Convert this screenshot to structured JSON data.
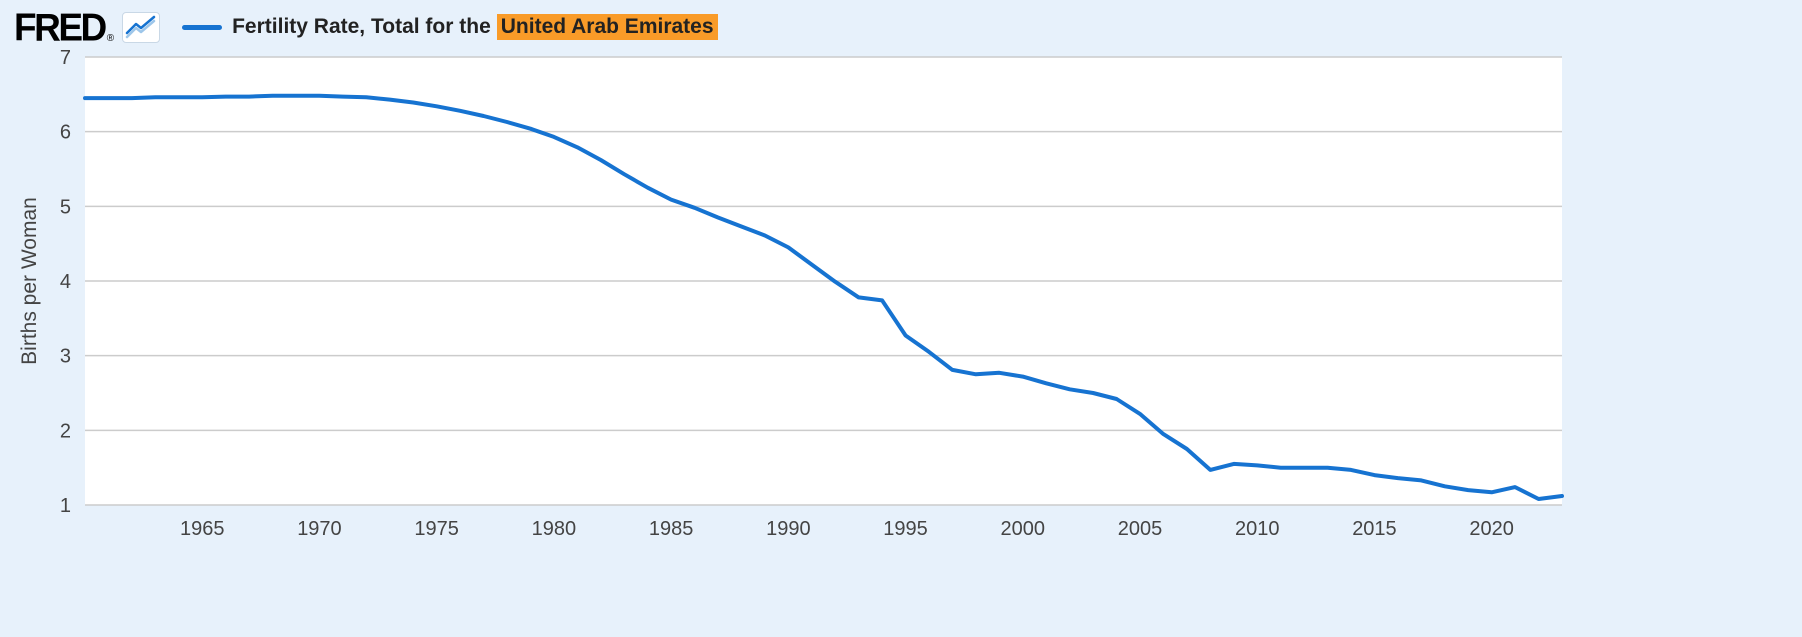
{
  "header": {
    "logo_text": "FRED",
    "registered_mark": "®",
    "legend": {
      "prefix": "Fertility Rate, Total for the",
      "highlight": "United Arab Emirates"
    }
  },
  "colors": {
    "background": "#e7f1fb",
    "plot_background": "#ffffff",
    "line": "#1673d1",
    "line_echo": "#9dc6ea",
    "gridline": "#cccccc",
    "highlight": "#f99b28",
    "tick_text": "#444444",
    "legend_text": "#222222",
    "logo_text": "#000000"
  },
  "chart_data": {
    "type": "line",
    "title": "Fertility Rate, Total for the United Arab Emirates",
    "series_name": "Fertility Rate, Total for the United Arab Emirates",
    "xlabel": "",
    "ylabel": "Births per Woman",
    "x": [
      1960,
      1961,
      1962,
      1963,
      1964,
      1965,
      1966,
      1967,
      1968,
      1969,
      1970,
      1971,
      1972,
      1973,
      1974,
      1975,
      1976,
      1977,
      1978,
      1979,
      1980,
      1981,
      1982,
      1983,
      1984,
      1985,
      1986,
      1987,
      1988,
      1989,
      1990,
      1991,
      1992,
      1993,
      1994,
      1995,
      1996,
      1997,
      1998,
      1999,
      2000,
      2001,
      2002,
      2003,
      2004,
      2005,
      2006,
      2007,
      2008,
      2009,
      2010,
      2011,
      2012,
      2013,
      2014,
      2015,
      2016,
      2017,
      2018,
      2019,
      2020,
      2021,
      2022,
      2023
    ],
    "values": [
      6.45,
      6.45,
      6.45,
      6.46,
      6.46,
      6.46,
      6.47,
      6.47,
      6.48,
      6.48,
      6.48,
      6.47,
      6.46,
      6.43,
      6.39,
      6.34,
      6.28,
      6.21,
      6.13,
      6.04,
      5.93,
      5.79,
      5.62,
      5.43,
      5.25,
      5.09,
      4.98,
      4.85,
      4.73,
      4.61,
      4.45,
      4.22,
      3.99,
      3.78,
      3.74,
      3.27,
      3.05,
      2.81,
      2.75,
      2.77,
      2.72,
      2.63,
      2.55,
      2.5,
      2.42,
      2.22,
      1.95,
      1.75,
      1.47,
      1.55,
      1.53,
      1.5,
      1.5,
      1.5,
      1.47,
      1.4,
      1.36,
      1.33,
      1.25,
      1.2,
      1.17,
      1.24,
      1.08,
      1.12
    ],
    "xlim": [
      1960,
      2023
    ],
    "ylim": [
      1,
      7
    ],
    "xticks": [
      1965,
      1970,
      1975,
      1980,
      1985,
      1990,
      1995,
      2000,
      2005,
      2010,
      2015,
      2020
    ],
    "yticks": [
      1,
      2,
      3,
      4,
      5,
      6,
      7
    ],
    "grid": "horizontal",
    "legend_position": "top-left"
  }
}
